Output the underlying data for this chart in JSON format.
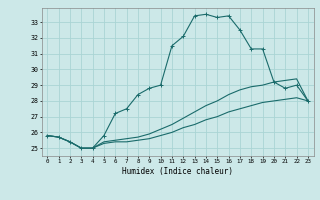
{
  "xlabel": "Humidex (Indice chaleur)",
  "bg_color": "#cce8e8",
  "grid_color": "#aad4d4",
  "line_color": "#1a6b6b",
  "x_ticks": [
    0,
    1,
    2,
    3,
    4,
    5,
    6,
    7,
    8,
    9,
    10,
    11,
    12,
    13,
    14,
    15,
    16,
    17,
    18,
    19,
    20,
    21,
    22,
    23
  ],
  "y_ticks": [
    25,
    26,
    27,
    28,
    29,
    30,
    31,
    32,
    33
  ],
  "ylim": [
    24.5,
    33.9
  ],
  "xlim": [
    -0.5,
    23.5
  ],
  "series1": [
    25.8,
    25.7,
    25.4,
    25.0,
    25.0,
    25.8,
    27.2,
    27.5,
    28.4,
    28.8,
    29.0,
    31.5,
    32.1,
    33.4,
    33.5,
    33.3,
    33.4,
    32.5,
    31.3,
    31.3,
    29.2,
    28.8,
    29.0,
    28.0
  ],
  "series2": [
    25.8,
    25.7,
    25.4,
    25.0,
    25.0,
    25.4,
    25.5,
    25.6,
    25.7,
    25.9,
    26.2,
    26.5,
    26.9,
    27.3,
    27.7,
    28.0,
    28.4,
    28.7,
    28.9,
    29.0,
    29.2,
    29.3,
    29.4,
    28.0
  ],
  "series3": [
    25.8,
    25.7,
    25.4,
    25.0,
    25.0,
    25.3,
    25.4,
    25.4,
    25.5,
    25.6,
    25.8,
    26.0,
    26.3,
    26.5,
    26.8,
    27.0,
    27.3,
    27.5,
    27.7,
    27.9,
    28.0,
    28.1,
    28.2,
    28.0
  ]
}
